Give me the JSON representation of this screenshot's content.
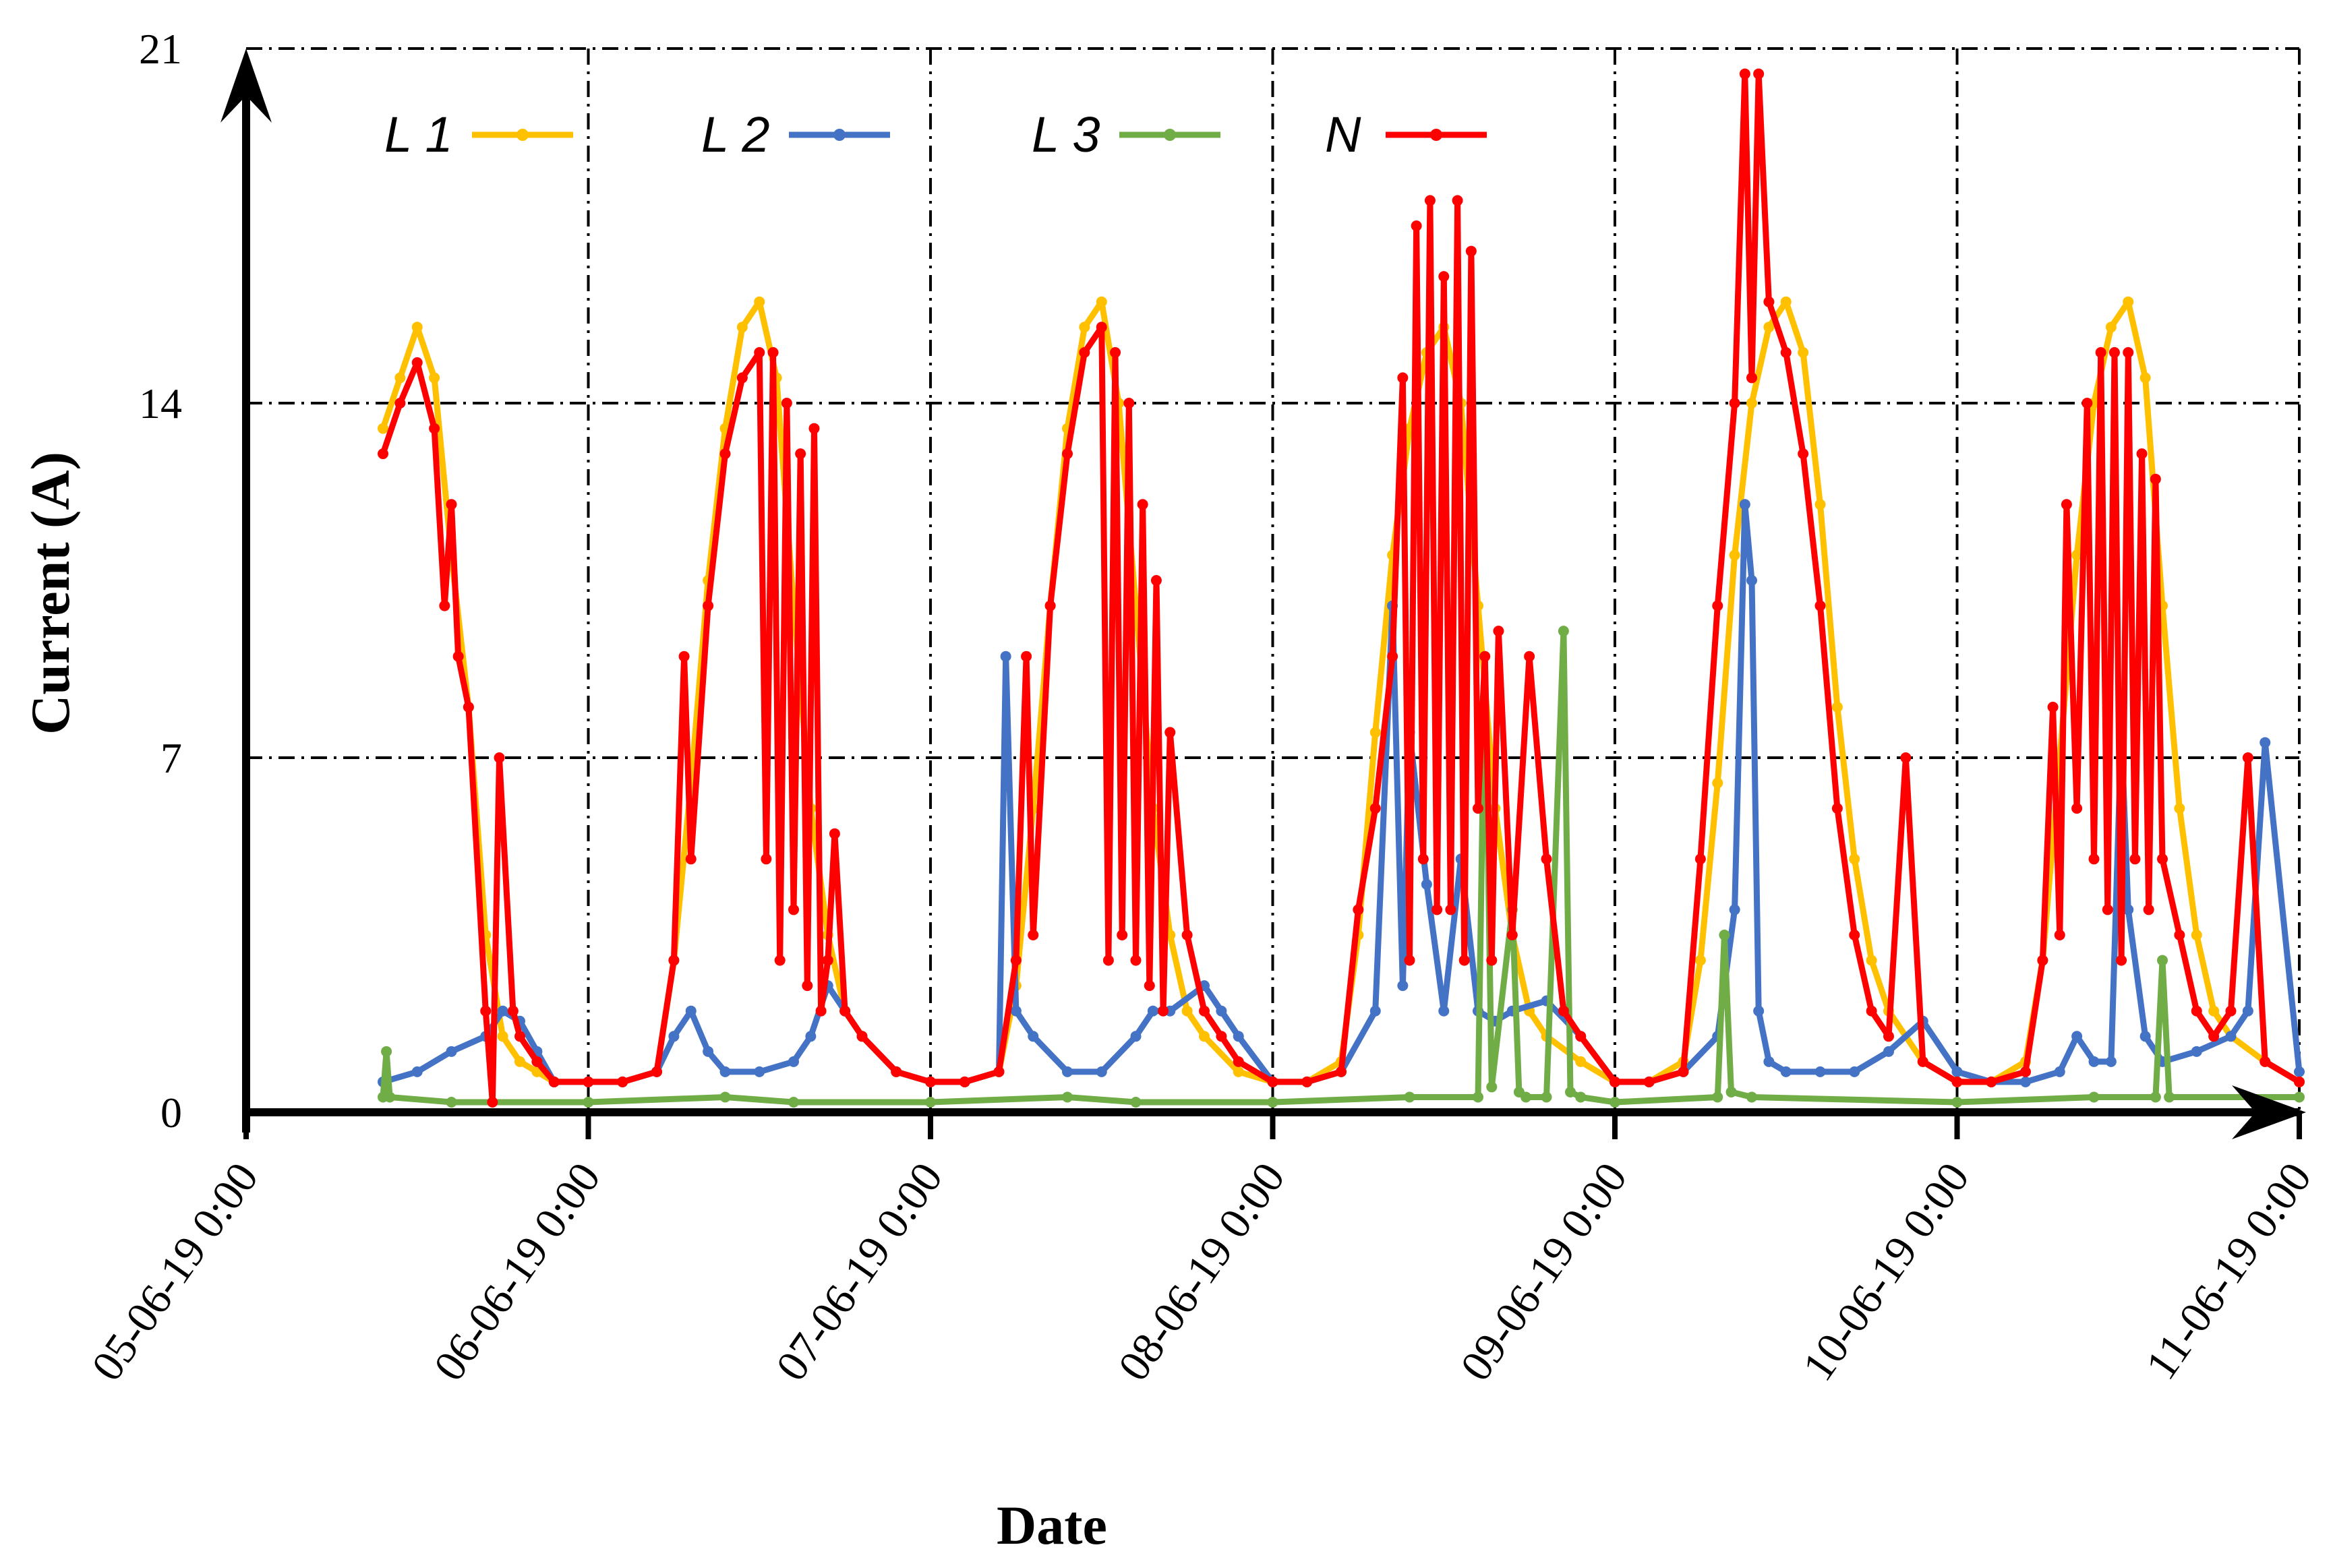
{
  "chart_data": {
    "type": "line",
    "title": "",
    "xlabel": "Date",
    "ylabel": "Current (A)",
    "ylim": [
      0,
      21
    ],
    "yticks": [
      0,
      7,
      14,
      21
    ],
    "xlim": [
      0,
      6
    ],
    "x_unit": "days since 05-06-19 0:00",
    "xtick_labels": [
      "05-06-19 0:00",
      "06-06-19 0:00",
      "07-06-19 0:00",
      "08-06-19 0:00",
      "09-06-19 0:00",
      "10-06-19 0:00",
      "11-06-19 0:00"
    ],
    "grid": true,
    "legend_position": "top",
    "series": [
      {
        "name": "L 1",
        "color": "#FFC000",
        "x": [
          0.4,
          0.45,
          0.5,
          0.55,
          0.6,
          0.65,
          0.7,
          0.75,
          0.8,
          0.85,
          0.9,
          1.0,
          1.1,
          1.2,
          1.25,
          1.3,
          1.35,
          1.4,
          1.45,
          1.5,
          1.55,
          1.6,
          1.65,
          1.7,
          1.75,
          1.8,
          1.9,
          2.0,
          2.1,
          2.2,
          2.25,
          2.3,
          2.35,
          2.4,
          2.45,
          2.5,
          2.55,
          2.6,
          2.65,
          2.7,
          2.75,
          2.8,
          2.9,
          3.0,
          3.1,
          3.2,
          3.25,
          3.3,
          3.35,
          3.4,
          3.45,
          3.5,
          3.55,
          3.6,
          3.65,
          3.7,
          3.75,
          3.8,
          3.9,
          4.0,
          4.1,
          4.2,
          4.25,
          4.3,
          4.35,
          4.4,
          4.45,
          4.5,
          4.55,
          4.6,
          4.65,
          4.7,
          4.75,
          4.8,
          4.9,
          5.0,
          5.1,
          5.2,
          5.25,
          5.3,
          5.35,
          5.4,
          5.45,
          5.5,
          5.55,
          5.6,
          5.65,
          5.7,
          5.75,
          5.8,
          5.9,
          6.0
        ],
        "values": [
          13.5,
          14.5,
          15.5,
          14.5,
          11.0,
          8.0,
          3.5,
          1.5,
          1.0,
          0.8,
          0.6,
          0.6,
          0.6,
          0.8,
          3.0,
          6.5,
          10.5,
          13.5,
          15.5,
          16.0,
          14.5,
          10.0,
          6.0,
          3.5,
          2.0,
          1.5,
          0.8,
          0.6,
          0.6,
          0.8,
          2.5,
          6.0,
          10.0,
          13.5,
          15.5,
          16.0,
          14.0,
          10.0,
          6.0,
          3.5,
          2.0,
          1.5,
          0.8,
          0.6,
          0.6,
          1.0,
          3.5,
          7.5,
          11.0,
          13.5,
          15.0,
          15.5,
          14.0,
          10.0,
          6.0,
          3.5,
          2.0,
          1.5,
          1.0,
          0.6,
          0.6,
          1.0,
          3.0,
          6.5,
          11.0,
          14.0,
          15.5,
          16.0,
          15.0,
          12.0,
          8.0,
          5.0,
          3.0,
          2.0,
          1.0,
          0.6,
          0.6,
          1.0,
          3.0,
          7.0,
          11.0,
          14.0,
          15.5,
          16.0,
          14.5,
          10.0,
          6.0,
          3.5,
          2.0,
          1.5,
          1.0,
          0.6
        ]
      },
      {
        "name": "L 2",
        "color": "#4472C4",
        "x": [
          0.4,
          0.5,
          0.6,
          0.7,
          0.75,
          0.8,
          0.85,
          0.9,
          1.0,
          1.1,
          1.2,
          1.25,
          1.3,
          1.35,
          1.4,
          1.5,
          1.6,
          1.65,
          1.7,
          1.75,
          1.8,
          1.9,
          2.0,
          2.1,
          2.2,
          2.22,
          2.25,
          2.3,
          2.4,
          2.5,
          2.6,
          2.65,
          2.7,
          2.8,
          2.85,
          2.9,
          3.0,
          3.1,
          3.2,
          3.3,
          3.35,
          3.38,
          3.4,
          3.45,
          3.5,
          3.55,
          3.6,
          3.65,
          3.7,
          3.8,
          3.9,
          4.0,
          4.1,
          4.2,
          4.3,
          4.35,
          4.38,
          4.4,
          4.42,
          4.45,
          4.5,
          4.6,
          4.7,
          4.8,
          4.9,
          5.0,
          5.1,
          5.2,
          5.3,
          5.35,
          5.4,
          5.45,
          5.48,
          5.5,
          5.55,
          5.6,
          5.7,
          5.8,
          5.85,
          5.9,
          6.0
        ],
        "values": [
          0.6,
          0.8,
          1.2,
          1.5,
          2.0,
          1.8,
          1.2,
          0.6,
          0.6,
          0.6,
          0.8,
          1.5,
          2.0,
          1.2,
          0.8,
          0.8,
          1.0,
          1.5,
          2.5,
          2.0,
          1.5,
          0.8,
          0.6,
          0.6,
          0.8,
          9.0,
          2.0,
          1.5,
          0.8,
          0.8,
          1.5,
          2.0,
          2.0,
          2.5,
          2.0,
          1.5,
          0.6,
          0.6,
          0.8,
          2.0,
          10.0,
          2.5,
          7.5,
          4.5,
          2.0,
          5.0,
          2.0,
          1.8,
          2.0,
          2.2,
          1.5,
          0.6,
          0.6,
          0.8,
          1.5,
          4.0,
          12.0,
          10.5,
          2.0,
          1.0,
          0.8,
          0.8,
          0.8,
          1.2,
          1.8,
          0.8,
          0.6,
          0.6,
          0.8,
          1.5,
          1.0,
          1.0,
          7.5,
          4.0,
          1.5,
          1.0,
          1.2,
          1.5,
          2.0,
          7.3,
          0.8
        ]
      },
      {
        "name": "L 3",
        "color": "#70AD47",
        "x": [
          0.4,
          0.41,
          0.42,
          0.6,
          1.0,
          1.4,
          1.6,
          2.0,
          2.4,
          2.6,
          3.0,
          3.4,
          3.6,
          3.62,
          3.64,
          3.7,
          3.72,
          3.74,
          3.8,
          3.85,
          3.87,
          3.9,
          4.0,
          4.3,
          4.32,
          4.34,
          4.4,
          5.0,
          5.4,
          5.58,
          5.6,
          5.62,
          6.0
        ],
        "values": [
          0.3,
          1.2,
          0.3,
          0.2,
          0.2,
          0.3,
          0.2,
          0.2,
          0.3,
          0.2,
          0.2,
          0.3,
          0.3,
          9.0,
          0.5,
          4.0,
          0.4,
          0.3,
          0.3,
          9.5,
          0.4,
          0.3,
          0.2,
          0.3,
          3.5,
          0.4,
          0.3,
          0.2,
          0.3,
          0.3,
          3.0,
          0.3,
          0.3
        ]
      },
      {
        "name": "N",
        "color": "#FF0000",
        "x": [
          0.4,
          0.45,
          0.5,
          0.55,
          0.58,
          0.6,
          0.62,
          0.65,
          0.7,
          0.72,
          0.74,
          0.78,
          0.8,
          0.85,
          0.9,
          1.0,
          1.1,
          1.2,
          1.25,
          1.28,
          1.3,
          1.35,
          1.4,
          1.45,
          1.5,
          1.52,
          1.54,
          1.56,
          1.58,
          1.6,
          1.62,
          1.64,
          1.66,
          1.68,
          1.7,
          1.72,
          1.75,
          1.8,
          1.9,
          2.0,
          2.1,
          2.2,
          2.25,
          2.28,
          2.3,
          2.35,
          2.4,
          2.45,
          2.5,
          2.52,
          2.54,
          2.56,
          2.58,
          2.6,
          2.62,
          2.64,
          2.66,
          2.68,
          2.7,
          2.75,
          2.8,
          2.85,
          2.9,
          3.0,
          3.1,
          3.2,
          3.25,
          3.3,
          3.35,
          3.38,
          3.4,
          3.42,
          3.44,
          3.46,
          3.48,
          3.5,
          3.52,
          3.54,
          3.56,
          3.58,
          3.6,
          3.62,
          3.64,
          3.66,
          3.7,
          3.75,
          3.8,
          3.85,
          3.9,
          4.0,
          4.1,
          4.2,
          4.25,
          4.3,
          4.35,
          4.38,
          4.4,
          4.42,
          4.45,
          4.5,
          4.55,
          4.6,
          4.65,
          4.7,
          4.75,
          4.8,
          4.85,
          4.9,
          5.0,
          5.1,
          5.2,
          5.25,
          5.28,
          5.3,
          5.32,
          5.35,
          5.38,
          5.4,
          5.42,
          5.44,
          5.46,
          5.48,
          5.5,
          5.52,
          5.54,
          5.56,
          5.58,
          5.6,
          5.65,
          5.7,
          5.75,
          5.8,
          5.85,
          5.9,
          6.0
        ],
        "values": [
          13.0,
          14.0,
          14.8,
          13.5,
          10.0,
          12.0,
          9.0,
          8.0,
          2.0,
          0.2,
          7.0,
          2.0,
          1.5,
          1.0,
          0.6,
          0.6,
          0.6,
          0.8,
          3.0,
          9.0,
          5.0,
          10.0,
          13.0,
          14.5,
          15.0,
          5.0,
          15.0,
          3.0,
          14.0,
          4.0,
          13.0,
          2.5,
          13.5,
          2.0,
          3.0,
          5.5,
          2.0,
          1.5,
          0.8,
          0.6,
          0.6,
          0.8,
          3.0,
          9.0,
          3.5,
          10.0,
          13.0,
          15.0,
          15.5,
          3.0,
          15.0,
          3.5,
          14.0,
          3.0,
          12.0,
          2.5,
          10.5,
          2.0,
          7.5,
          3.5,
          2.0,
          1.5,
          1.0,
          0.6,
          0.6,
          0.8,
          4.0,
          6.0,
          9.0,
          14.5,
          3.0,
          17.5,
          5.0,
          18.0,
          4.0,
          16.5,
          4.0,
          18.0,
          3.0,
          17.0,
          6.0,
          9.0,
          3.0,
          9.5,
          3.5,
          9.0,
          5.0,
          2.0,
          1.5,
          0.6,
          0.6,
          0.8,
          5.0,
          10.0,
          14.0,
          20.5,
          14.5,
          20.5,
          16.0,
          15.0,
          13.0,
          10.0,
          6.0,
          3.5,
          2.0,
          1.5,
          7.0,
          1.0,
          0.6,
          0.6,
          0.8,
          3.0,
          8.0,
          3.5,
          12.0,
          6.0,
          14.0,
          5.0,
          15.0,
          4.0,
          15.0,
          3.0,
          15.0,
          5.0,
          13.0,
          4.0,
          12.5,
          5.0,
          3.5,
          2.0,
          1.5,
          2.0,
          7.0,
          1.0,
          0.6
        ]
      }
    ]
  }
}
